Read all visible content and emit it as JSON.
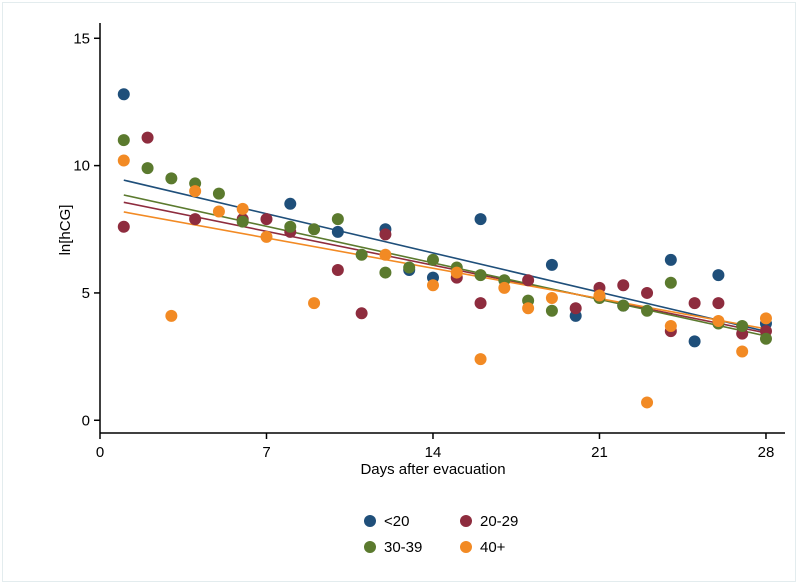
{
  "chart_data": {
    "type": "scatter",
    "title": "",
    "xlabel": "Days after evacuation",
    "ylabel": "ln[hCG]",
    "xlim": [
      0,
      28.8
    ],
    "ylim": [
      -0.5,
      15.6
    ],
    "xticks": [
      0,
      7,
      14,
      21,
      28
    ],
    "yticks": [
      0,
      5,
      10,
      15
    ],
    "grid": false,
    "legend_position": "bottom",
    "series": [
      {
        "name": "<20",
        "color": "#1f4f7a",
        "points": [
          [
            1,
            12.8
          ],
          [
            8,
            8.5
          ],
          [
            10,
            7.4
          ],
          [
            12,
            7.5
          ],
          [
            13,
            5.9
          ],
          [
            14,
            5.6
          ],
          [
            16,
            7.9
          ],
          [
            19,
            6.1
          ],
          [
            20,
            4.1
          ],
          [
            22,
            4.5
          ],
          [
            24,
            6.3
          ],
          [
            25,
            3.1
          ],
          [
            26,
            5.7
          ],
          [
            28,
            3.8
          ]
        ],
        "fit": {
          "intercept": 9.65,
          "slope": -0.22
        }
      },
      {
        "name": "20-29",
        "color": "#8e2c3e",
        "points": [
          [
            1,
            7.6
          ],
          [
            2,
            11.1
          ],
          [
            4,
            7.9
          ],
          [
            6,
            7.9
          ],
          [
            7,
            7.9
          ],
          [
            8,
            7.4
          ],
          [
            10,
            5.9
          ],
          [
            11,
            4.2
          ],
          [
            12,
            7.3
          ],
          [
            15,
            5.6
          ],
          [
            16,
            4.6
          ],
          [
            18,
            5.5
          ],
          [
            20,
            4.4
          ],
          [
            21,
            5.2
          ],
          [
            22,
            5.3
          ],
          [
            23,
            5.0
          ],
          [
            24,
            3.5
          ],
          [
            25,
            4.6
          ],
          [
            26,
            4.6
          ],
          [
            27,
            3.4
          ],
          [
            28,
            3.5
          ]
        ],
        "fit": {
          "intercept": 8.75,
          "slope": -0.19
        }
      },
      {
        "name": "30-39",
        "color": "#5b7a2e",
        "points": [
          [
            1,
            11.0
          ],
          [
            2,
            9.9
          ],
          [
            3,
            9.5
          ],
          [
            4,
            9.3
          ],
          [
            5,
            8.9
          ],
          [
            6,
            7.8
          ],
          [
            8,
            7.6
          ],
          [
            9,
            7.5
          ],
          [
            10,
            7.9
          ],
          [
            11,
            6.5
          ],
          [
            12,
            5.8
          ],
          [
            13,
            6.0
          ],
          [
            14,
            6.3
          ],
          [
            15,
            6.0
          ],
          [
            16,
            5.7
          ],
          [
            17,
            5.5
          ],
          [
            18,
            4.7
          ],
          [
            19,
            4.3
          ],
          [
            21,
            4.8
          ],
          [
            22,
            4.5
          ],
          [
            23,
            4.3
          ],
          [
            24,
            5.4
          ],
          [
            26,
            3.8
          ],
          [
            27,
            3.7
          ],
          [
            28,
            3.2
          ]
        ],
        "fit": {
          "intercept": 9.05,
          "slope": -0.205
        }
      },
      {
        "name": "40+",
        "color": "#f28a24",
        "points": [
          [
            1,
            10.2
          ],
          [
            3,
            4.1
          ],
          [
            4,
            9.0
          ],
          [
            5,
            8.2
          ],
          [
            6,
            8.3
          ],
          [
            7,
            7.2
          ],
          [
            9,
            4.6
          ],
          [
            12,
            6.5
          ],
          [
            14,
            5.3
          ],
          [
            15,
            5.8
          ],
          [
            16,
            2.4
          ],
          [
            17,
            5.2
          ],
          [
            18,
            4.4
          ],
          [
            19,
            4.8
          ],
          [
            21,
            4.9
          ],
          [
            23,
            0.7
          ],
          [
            24,
            3.7
          ],
          [
            26,
            3.9
          ],
          [
            27,
            2.7
          ],
          [
            28,
            4.0
          ]
        ],
        "fit": {
          "intercept": 8.35,
          "slope": -0.17
        }
      }
    ]
  }
}
